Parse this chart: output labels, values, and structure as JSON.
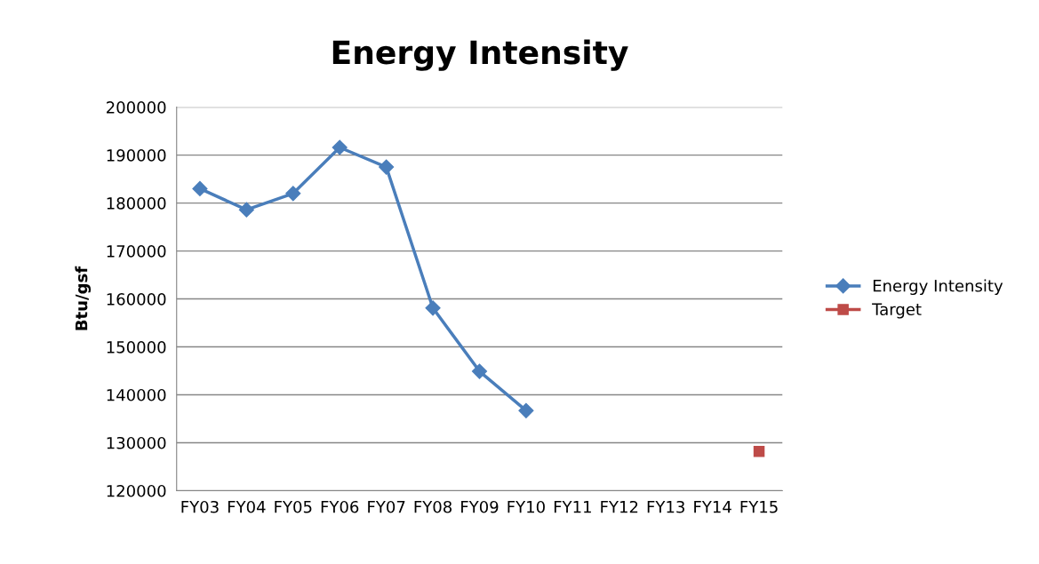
{
  "chart_data": {
    "type": "line",
    "title": "Energy Intensity",
    "ylabel": "Btu/gsf",
    "categories": [
      "FY03",
      "FY04",
      "FY05",
      "FY06",
      "FY07",
      "FY08",
      "FY09",
      "FY10",
      "FY11",
      "FY12",
      "FY13",
      "FY14",
      "FY15"
    ],
    "series": [
      {
        "name": "Energy Intensity",
        "color": "#4a7ebb",
        "marker": "diamond",
        "values": [
          183000,
          178600,
          182000,
          191600,
          187500,
          158100,
          144900,
          136700,
          null,
          null,
          null,
          null,
          null
        ]
      },
      {
        "name": "Target",
        "color": "#be4b48",
        "marker": "square",
        "values": [
          null,
          null,
          null,
          null,
          null,
          null,
          null,
          null,
          null,
          null,
          null,
          null,
          128200
        ]
      }
    ],
    "ylim": [
      120000,
      200000
    ],
    "yticks": [
      120000,
      130000,
      140000,
      150000,
      160000,
      170000,
      180000,
      190000,
      200000
    ],
    "grid": "y",
    "legend": "right",
    "line_style": "solid"
  }
}
